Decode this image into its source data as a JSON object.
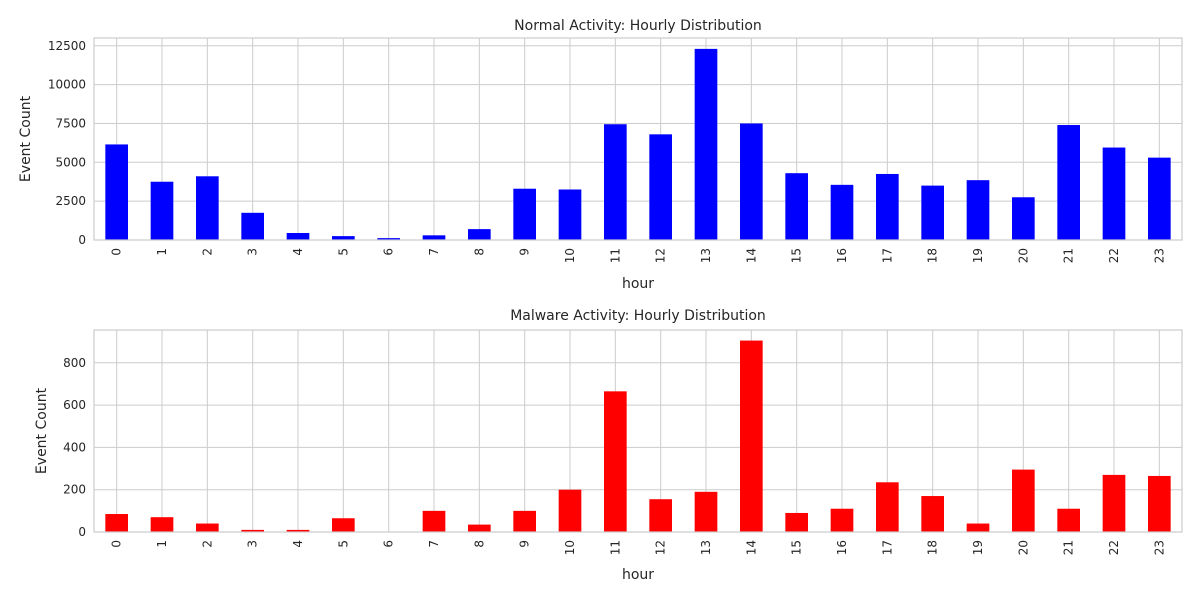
{
  "chart_data": [
    {
      "type": "bar",
      "title": "Normal Activity: Hourly Distribution",
      "xlabel": "hour",
      "ylabel": "Event Count",
      "categories": [
        "0",
        "1",
        "2",
        "3",
        "4",
        "5",
        "6",
        "7",
        "8",
        "9",
        "10",
        "11",
        "12",
        "13",
        "14",
        "15",
        "16",
        "17",
        "18",
        "19",
        "20",
        "21",
        "22",
        "23"
      ],
      "values": [
        6150,
        3750,
        4100,
        1750,
        450,
        250,
        120,
        300,
        700,
        3300,
        3250,
        7450,
        6800,
        12300,
        7500,
        4300,
        3550,
        4250,
        3500,
        3850,
        2750,
        7400,
        5950,
        5300
      ],
      "yticks": [
        0,
        2500,
        5000,
        7500,
        10000,
        12500
      ],
      "ylim": [
        0,
        13000
      ],
      "color": "#0000ff",
      "grid": true,
      "legend": "none"
    },
    {
      "type": "bar",
      "title": "Malware Activity: Hourly Distribution",
      "xlabel": "hour",
      "ylabel": "Event Count",
      "categories": [
        "0",
        "1",
        "2",
        "3",
        "4",
        "5",
        "6",
        "7",
        "8",
        "9",
        "10",
        "11",
        "12",
        "13",
        "14",
        "15",
        "16",
        "17",
        "18",
        "19",
        "20",
        "21",
        "22",
        "23"
      ],
      "values": [
        85,
        70,
        40,
        10,
        10,
        65,
        0,
        100,
        35,
        100,
        200,
        665,
        155,
        190,
        905,
        90,
        110,
        235,
        170,
        40,
        295,
        110,
        270,
        265
      ],
      "yticks": [
        0,
        200,
        400,
        600,
        800
      ],
      "ylim": [
        0,
        955
      ],
      "color": "#ff0000",
      "grid": true,
      "legend": "none"
    }
  ]
}
